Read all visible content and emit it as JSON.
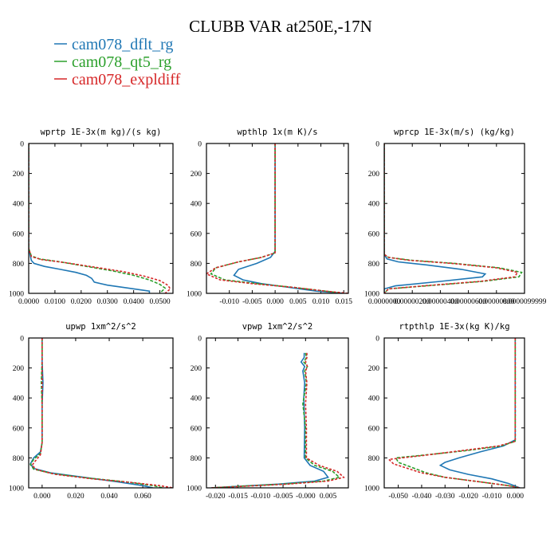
{
  "title": "CLUBB VAR at250E,-17N",
  "legend": [
    {
      "label": "cam078_dflt_rg",
      "color": "#1f77b4"
    },
    {
      "label": "cam078_qt5_rg",
      "color": "#2ca02c"
    },
    {
      "label": "cam078_expldiff",
      "color": "#d62728"
    }
  ],
  "chart_data": [
    {
      "type": "line",
      "title": "wprtp  1E-3x(m kg)/(s kg)",
      "xlim": [
        0.0,
        0.055
      ],
      "ylim": [
        1000,
        0
      ],
      "xticks": [
        "0.0000",
        "0.0100",
        "0.0200",
        "0.0300",
        "0.0400",
        "0.0500"
      ],
      "xtick_values": [
        0.0,
        0.01,
        0.02,
        0.03,
        0.04,
        0.05
      ],
      "yticks": [
        0,
        200,
        400,
        600,
        800,
        1000
      ],
      "series": [
        {
          "name": "cam078_dflt_rg",
          "x": [
            0,
            0,
            0,
            0.001,
            0.002,
            0.006,
            0.012,
            0.018,
            0.022,
            0.024,
            0.025,
            0.03,
            0.038,
            0.046,
            0.046
          ],
          "y": [
            0,
            500,
            700,
            780,
            800,
            820,
            840,
            860,
            880,
            900,
            925,
            945,
            965,
            985,
            1000
          ]
        },
        {
          "name": "cam078_qt5_rg",
          "x": [
            0,
            0,
            0,
            0.001,
            0.004,
            0.012,
            0.022,
            0.032,
            0.04,
            0.046,
            0.05,
            0.052,
            0.05
          ],
          "y": [
            0,
            500,
            700,
            750,
            770,
            790,
            820,
            850,
            880,
            910,
            940,
            965,
            1000
          ]
        },
        {
          "name": "cam078_expldiff",
          "x": [
            0,
            0,
            0,
            0.001,
            0.005,
            0.014,
            0.025,
            0.036,
            0.044,
            0.05,
            0.053,
            0.054,
            0.052
          ],
          "y": [
            0,
            500,
            700,
            755,
            775,
            795,
            825,
            855,
            885,
            915,
            945,
            970,
            1000
          ]
        }
      ]
    },
    {
      "type": "line",
      "title": "wpthlp  1x(m K)/s",
      "xlim": [
        -0.015,
        0.016
      ],
      "ylim": [
        1000,
        0
      ],
      "xticks": [
        "-0.010",
        "-0.005",
        "0.000",
        "0.005",
        "0.010",
        "0.015"
      ],
      "xtick_values": [
        -0.01,
        -0.005,
        0.0,
        0.005,
        0.01,
        0.015
      ],
      "yticks": [
        0,
        200,
        400,
        600,
        800,
        1000
      ],
      "series": [
        {
          "name": "cam078_dflt_rg",
          "x": [
            0,
            0,
            0,
            -0.001,
            -0.004,
            -0.008,
            -0.009,
            -0.007,
            -0.003,
            0.003,
            0.009,
            0.015
          ],
          "y": [
            0,
            400,
            720,
            760,
            800,
            840,
            880,
            910,
            935,
            960,
            985,
            1000
          ]
        },
        {
          "name": "cam078_qt5_rg",
          "x": [
            0,
            0,
            0,
            -0.003,
            -0.008,
            -0.013,
            -0.014,
            -0.011,
            -0.004,
            0.004,
            0.011,
            0.015
          ],
          "y": [
            0,
            400,
            730,
            760,
            790,
            830,
            870,
            910,
            935,
            960,
            985,
            1000
          ]
        },
        {
          "name": "cam078_expldiff",
          "x": [
            0,
            0,
            0,
            -0.003,
            -0.008,
            -0.013,
            -0.015,
            -0.012,
            -0.005,
            0.004,
            0.011,
            0.016
          ],
          "y": [
            0,
            400,
            730,
            760,
            790,
            830,
            870,
            910,
            935,
            960,
            985,
            1000
          ]
        }
      ]
    },
    {
      "type": "line",
      "title": "wprcp  1E-3x(m/s) (kg/kg)",
      "xlim": [
        0.0,
        1e-05
      ],
      "ylim": [
        1000,
        0
      ],
      "xticks": [
        "0.0000000",
        "0.00000200",
        "0.00000400",
        "0.00000600",
        "0.00000800",
        "0.0000099999"
      ],
      "xtick_values": [
        0.0,
        2e-06,
        4e-06,
        6e-06,
        8e-06,
        1e-05
      ],
      "yticks": [
        0,
        200,
        400,
        600,
        800,
        1000
      ],
      "series": [
        {
          "name": "cam078_dflt_rg",
          "x": [
            0,
            0,
            0,
            2e-07,
            1e-06,
            3e-06,
            5.5e-06,
            7.2e-06,
            7e-06,
            4e-06,
            8e-07,
            0,
            0
          ],
          "y": [
            0,
            500,
            740,
            770,
            790,
            810,
            840,
            870,
            890,
            920,
            950,
            970,
            1000
          ]
        },
        {
          "name": "cam078_qt5_rg",
          "x": [
            0,
            0,
            0,
            3e-07,
            2e-06,
            5e-06,
            8.2e-06,
            9.8e-06,
            9.6e-06,
            7e-06,
            3e-06,
            3e-07,
            0
          ],
          "y": [
            0,
            500,
            740,
            760,
            780,
            800,
            830,
            860,
            890,
            920,
            950,
            970,
            1000
          ]
        },
        {
          "name": "cam078_expldiff",
          "x": [
            0,
            0,
            0,
            3e-07,
            1.8e-06,
            4.8e-06,
            8e-06,
            9.5e-06,
            9.3e-06,
            6.8e-06,
            2.8e-06,
            3e-07,
            0
          ],
          "y": [
            0,
            500,
            740,
            760,
            780,
            800,
            830,
            860,
            890,
            920,
            950,
            970,
            1000
          ]
        }
      ]
    },
    {
      "type": "line",
      "title": "upwp  1xm^2/s^2",
      "xlim": [
        -0.008,
        0.078
      ],
      "ylim": [
        1000,
        0
      ],
      "xticks": [
        "0.000",
        "0.020",
        "0.040",
        "0.060"
      ],
      "xtick_values": [
        0.0,
        0.02,
        0.04,
        0.06
      ],
      "yticks": [
        0,
        200,
        400,
        600,
        800,
        1000
      ],
      "series": [
        {
          "name": "cam078_dflt_rg",
          "x": [
            0,
            0,
            0.0005,
            0,
            0,
            -0.001,
            -0.005,
            -0.007,
            -0.005,
            0.005,
            0.025,
            0.045,
            0.06,
            0.066
          ],
          "y": [
            0,
            150,
            300,
            450,
            700,
            760,
            800,
            840,
            870,
            900,
            930,
            960,
            985,
            1000
          ]
        },
        {
          "name": "cam078_qt5_rg",
          "x": [
            0,
            0,
            -0.0005,
            0,
            0,
            -0.001,
            -0.005,
            -0.007,
            -0.005,
            0.006,
            0.028,
            0.05,
            0.066,
            0.072
          ],
          "y": [
            0,
            150,
            300,
            450,
            700,
            770,
            810,
            845,
            875,
            905,
            935,
            960,
            985,
            1000
          ]
        },
        {
          "name": "cam078_expldiff",
          "x": [
            0,
            0,
            0,
            0,
            0,
            -0.001,
            -0.004,
            -0.006,
            -0.003,
            0.008,
            0.03,
            0.054,
            0.07,
            0.078
          ],
          "y": [
            0,
            150,
            300,
            450,
            700,
            780,
            820,
            850,
            880,
            910,
            940,
            965,
            985,
            1000
          ]
        }
      ]
    },
    {
      "type": "line",
      "title": "vpwp  1xm^2/s^2",
      "xlim": [
        -0.022,
        0.0095
      ],
      "ylim": [
        1000,
        0
      ],
      "xticks": [
        "-0.020",
        "-0.015",
        "-0.010",
        "-0.005",
        "-0.000",
        "0.005"
      ],
      "xtick_values": [
        -0.02,
        -0.015,
        -0.01,
        -0.005,
        0.0,
        0.005
      ],
      "yticks": [
        0,
        200,
        400,
        600,
        800,
        1000
      ],
      "series": [
        {
          "name": "cam078_dflt_rg",
          "x": [
            -0.0003,
            -0.0003,
            -0.001,
            -0.0002,
            -0.0006,
            -0.0002,
            -0.0004,
            -0.0002,
            -0.0003,
            0.001,
            0.004,
            0.005,
            0.002,
            -0.006,
            -0.015,
            -0.021
          ],
          "y": [
            100,
            130,
            160,
            190,
            220,
            300,
            400,
            600,
            800,
            850,
            890,
            930,
            955,
            975,
            990,
            1000
          ]
        },
        {
          "name": "cam078_qt5_rg",
          "x": [
            0,
            0.0002,
            -0.0004,
            0.0004,
            -0.0002,
            0.0002,
            -0.0006,
            0,
            0,
            0.002,
            0.006,
            0.0075,
            0.004,
            -0.005,
            -0.015,
            -0.021
          ],
          "y": [
            100,
            130,
            160,
            190,
            220,
            300,
            440,
            600,
            800,
            850,
            890,
            930,
            955,
            975,
            990,
            1000
          ]
        },
        {
          "name": "cam078_expldiff",
          "x": [
            0.0003,
            0.0003,
            0,
            0.0004,
            0,
            0.0003,
            0,
            0.0002,
            0.0002,
            0.003,
            0.007,
            0.0085,
            0.005,
            -0.004,
            -0.014,
            -0.021
          ],
          "y": [
            100,
            130,
            160,
            190,
            220,
            300,
            440,
            600,
            800,
            850,
            890,
            930,
            955,
            975,
            990,
            1000
          ]
        }
      ]
    },
    {
      "type": "line",
      "title": "rtpthlp  1E-3x(kg K)/kg",
      "xlim": [
        -0.056,
        0.004
      ],
      "ylim": [
        1000,
        0
      ],
      "xticks": [
        "-0.050",
        "-0.040",
        "-0.030",
        "-0.020",
        "-0.010",
        "0.000"
      ],
      "xtick_values": [
        -0.05,
        -0.04,
        -0.03,
        -0.02,
        -0.01,
        0.0
      ],
      "yticks": [
        0,
        200,
        400,
        600,
        800,
        1000
      ],
      "series": [
        {
          "name": "cam078_dflt_rg",
          "x": [
            0,
            0,
            0,
            -0.005,
            -0.015,
            -0.024,
            -0.03,
            -0.032,
            -0.028,
            -0.02,
            -0.01,
            -0.003,
            0.002
          ],
          "y": [
            0,
            500,
            680,
            720,
            760,
            800,
            830,
            850,
            880,
            910,
            940,
            970,
            1000
          ]
        },
        {
          "name": "cam078_qt5_rg",
          "x": [
            0,
            0,
            0,
            -0.006,
            -0.02,
            -0.038,
            -0.051,
            -0.05,
            -0.043,
            -0.038,
            -0.03,
            -0.015,
            -0.003,
            0.002
          ],
          "y": [
            0,
            500,
            690,
            720,
            750,
            780,
            800,
            830,
            870,
            900,
            930,
            960,
            985,
            1000
          ]
        },
        {
          "name": "cam078_expldiff",
          "x": [
            0,
            0,
            0,
            -0.007,
            -0.022,
            -0.04,
            -0.054,
            -0.052,
            -0.046,
            -0.04,
            -0.03,
            -0.015,
            -0.003,
            0.002
          ],
          "y": [
            0,
            500,
            690,
            720,
            750,
            785,
            810,
            840,
            870,
            900,
            930,
            960,
            985,
            1000
          ]
        }
      ]
    }
  ]
}
